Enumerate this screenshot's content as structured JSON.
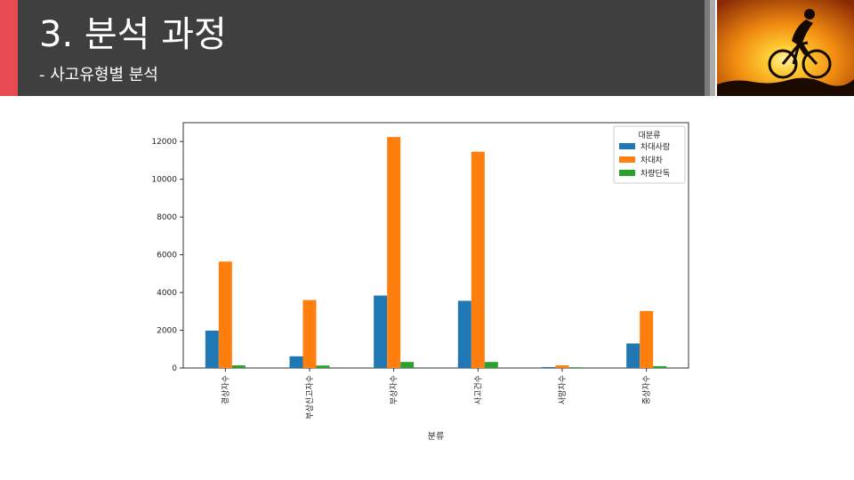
{
  "header": {
    "title": "3. 분석 과정",
    "subtitle": "- 사고유형별 분석"
  },
  "colors": {
    "header_bg": "#3f3f3f",
    "accent": "#e84a52",
    "series": [
      "#1f77b4",
      "#ff7f0e",
      "#2ca02c"
    ]
  },
  "chart_data": {
    "type": "bar",
    "title": "",
    "xlabel": "분류",
    "ylabel": "",
    "categories": [
      "경상자수",
      "부상신고자수",
      "부상자수",
      "사고건수",
      "사망자수",
      "중상자수"
    ],
    "series": [
      {
        "name": "차대사람",
        "values": [
          1980,
          620,
          3840,
          3560,
          50,
          1300
        ]
      },
      {
        "name": "차대차",
        "values": [
          5640,
          3600,
          12240,
          11460,
          140,
          3020
        ]
      },
      {
        "name": "차량단독",
        "values": [
          140,
          130,
          320,
          320,
          40,
          100
        ]
      }
    ],
    "ylim": [
      0,
      13000
    ],
    "yticks": [
      0,
      2000,
      4000,
      6000,
      8000,
      10000,
      12000
    ],
    "legend": {
      "title": "대분류",
      "placement": "top-right"
    },
    "grid": false
  }
}
